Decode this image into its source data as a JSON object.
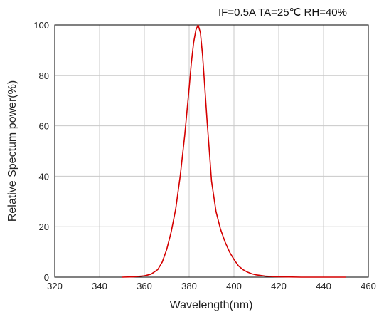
{
  "chart_data": {
    "type": "line",
    "title": "IF=0.5A TA=25℃ RH=40%",
    "xlabel": "Wavelength(nm)",
    "ylabel": "Relative Spectum power(%)",
    "xlim": [
      320,
      460
    ],
    "ylim": [
      0,
      100
    ],
    "xticks": [
      "320",
      "340",
      "360",
      "380",
      "400",
      "420",
      "440",
      "460"
    ],
    "yticks": [
      "0",
      "20",
      "40",
      "60",
      "80",
      "100"
    ],
    "grid": true,
    "line_color": "#d40000",
    "series": [
      {
        "x": [
          350,
          355,
          360,
          363,
          366,
          368,
          370,
          372,
          374,
          376,
          378,
          380,
          381,
          382,
          383,
          384,
          385,
          386,
          387,
          388,
          389,
          390,
          392,
          394,
          396,
          398,
          400,
          402,
          404,
          406,
          408,
          410,
          414,
          418,
          422,
          430,
          440,
          450
        ],
        "y": [
          0,
          0.1,
          0.5,
          1.2,
          3,
          6,
          11,
          18,
          27,
          40,
          56,
          75,
          85,
          93,
          98,
          100,
          97,
          88,
          75,
          62,
          50,
          38,
          26,
          19,
          14,
          10,
          7,
          4.5,
          3,
          2,
          1.3,
          0.9,
          0.4,
          0.2,
          0.1,
          0,
          0,
          0
        ]
      }
    ]
  }
}
